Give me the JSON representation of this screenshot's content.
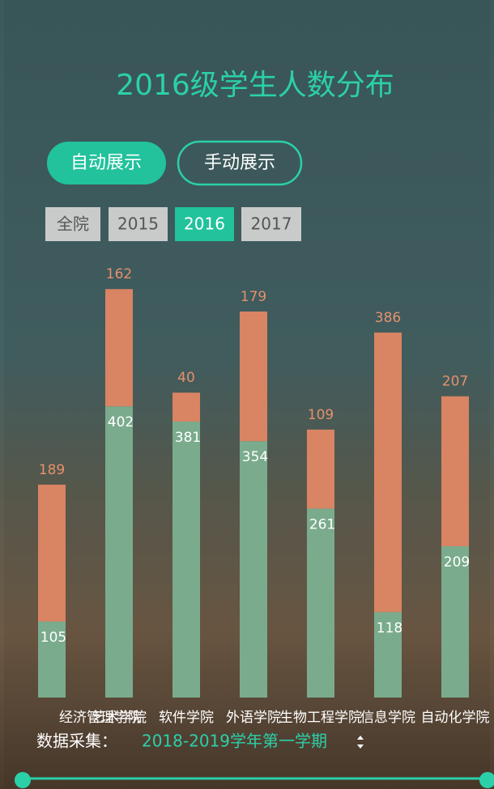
{
  "ui": {
    "buttons": [
      "自动展示",
      "手动展示"
    ],
    "tabs": [
      "全院",
      "2015",
      "2016",
      "2017"
    ],
    "footer": {
      "label": "数据采集：",
      "term": "2018-2019学年第一学期"
    }
  },
  "chart_data": {
    "type": "bar",
    "stacked": true,
    "title": "2016级学生人数分布",
    "categories": [
      "经济管理学院",
      "艺术学院",
      "软件学院",
      "外语学院",
      "生物工程学院",
      "信息学院",
      "自动化学院"
    ],
    "series": [
      {
        "color": "#7aab8c",
        "values": [
          105,
          402,
          381,
          354,
          261,
          118,
          209
        ]
      },
      {
        "color": "#d98463",
        "values": [
          189,
          162,
          40,
          179,
          109,
          386,
          207
        ]
      }
    ]
  }
}
